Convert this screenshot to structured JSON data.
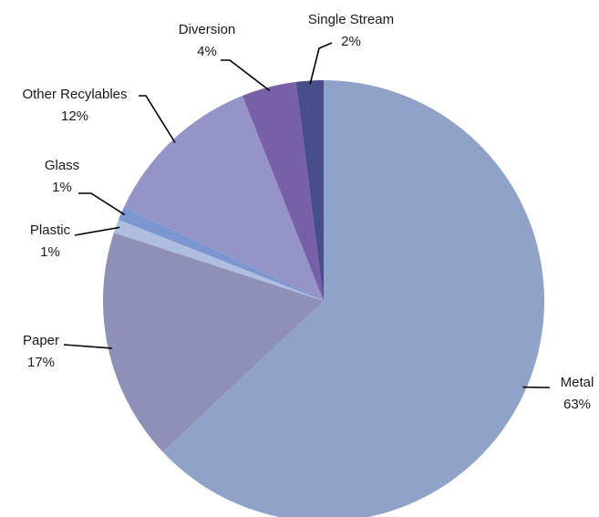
{
  "chart_data": {
    "type": "pie",
    "categories": [
      "Metal",
      "Paper",
      "Plastic",
      "Glass",
      "Other Recylables",
      "Diversion",
      "Single Stream"
    ],
    "values": [
      63,
      17,
      1,
      1,
      12,
      4,
      2
    ],
    "value_labels": [
      "63%",
      "17%",
      "1%",
      "1%",
      "12%",
      "4%",
      "2%"
    ],
    "colors": [
      "#8fa3c8",
      "#8f90b8",
      "#aebde0",
      "#7b96d0",
      "#9494c8",
      "#7860a8",
      "#484e8a"
    ]
  }
}
